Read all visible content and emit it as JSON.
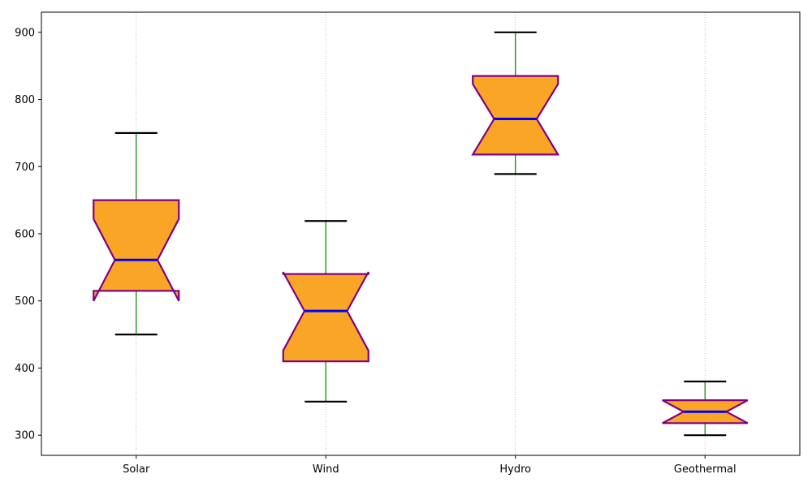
{
  "chart_data": {
    "type": "boxplot",
    "notched": true,
    "categories": [
      "Solar",
      "Wind",
      "Hydro",
      "Geothermal"
    ],
    "boxes": [
      {
        "name": "Solar",
        "whislo": 450,
        "q1": 515,
        "med": 561,
        "q3": 650,
        "whishi": 750,
        "cilo": 500,
        "cihi": 622
      },
      {
        "name": "Wind",
        "whislo": 350,
        "q1": 410,
        "med": 485,
        "q3": 540,
        "whishi": 619,
        "cilo": 426,
        "cihi": 543
      },
      {
        "name": "Hydro",
        "whislo": 689,
        "q1": 718,
        "med": 771,
        "q3": 835,
        "whishi": 900,
        "cilo": 718,
        "cihi": 823
      },
      {
        "name": "Geothermal",
        "whislo": 300,
        "q1": 318,
        "med": 335,
        "q3": 352,
        "whishi": 380,
        "cilo": 318,
        "cihi": 352
      }
    ],
    "ylim": [
      270,
      930
    ],
    "yticks": [
      300,
      400,
      500,
      600,
      700,
      800,
      900
    ],
    "title": "",
    "xlabel": "",
    "ylabel": "",
    "grid": "x-dotted",
    "colors": {
      "box_fill": "#f9a627",
      "box_edge": "#800080",
      "median": "#0000ff",
      "whisker": "#008000",
      "cap": "#000000",
      "grid": "#b0b0b0"
    }
  }
}
